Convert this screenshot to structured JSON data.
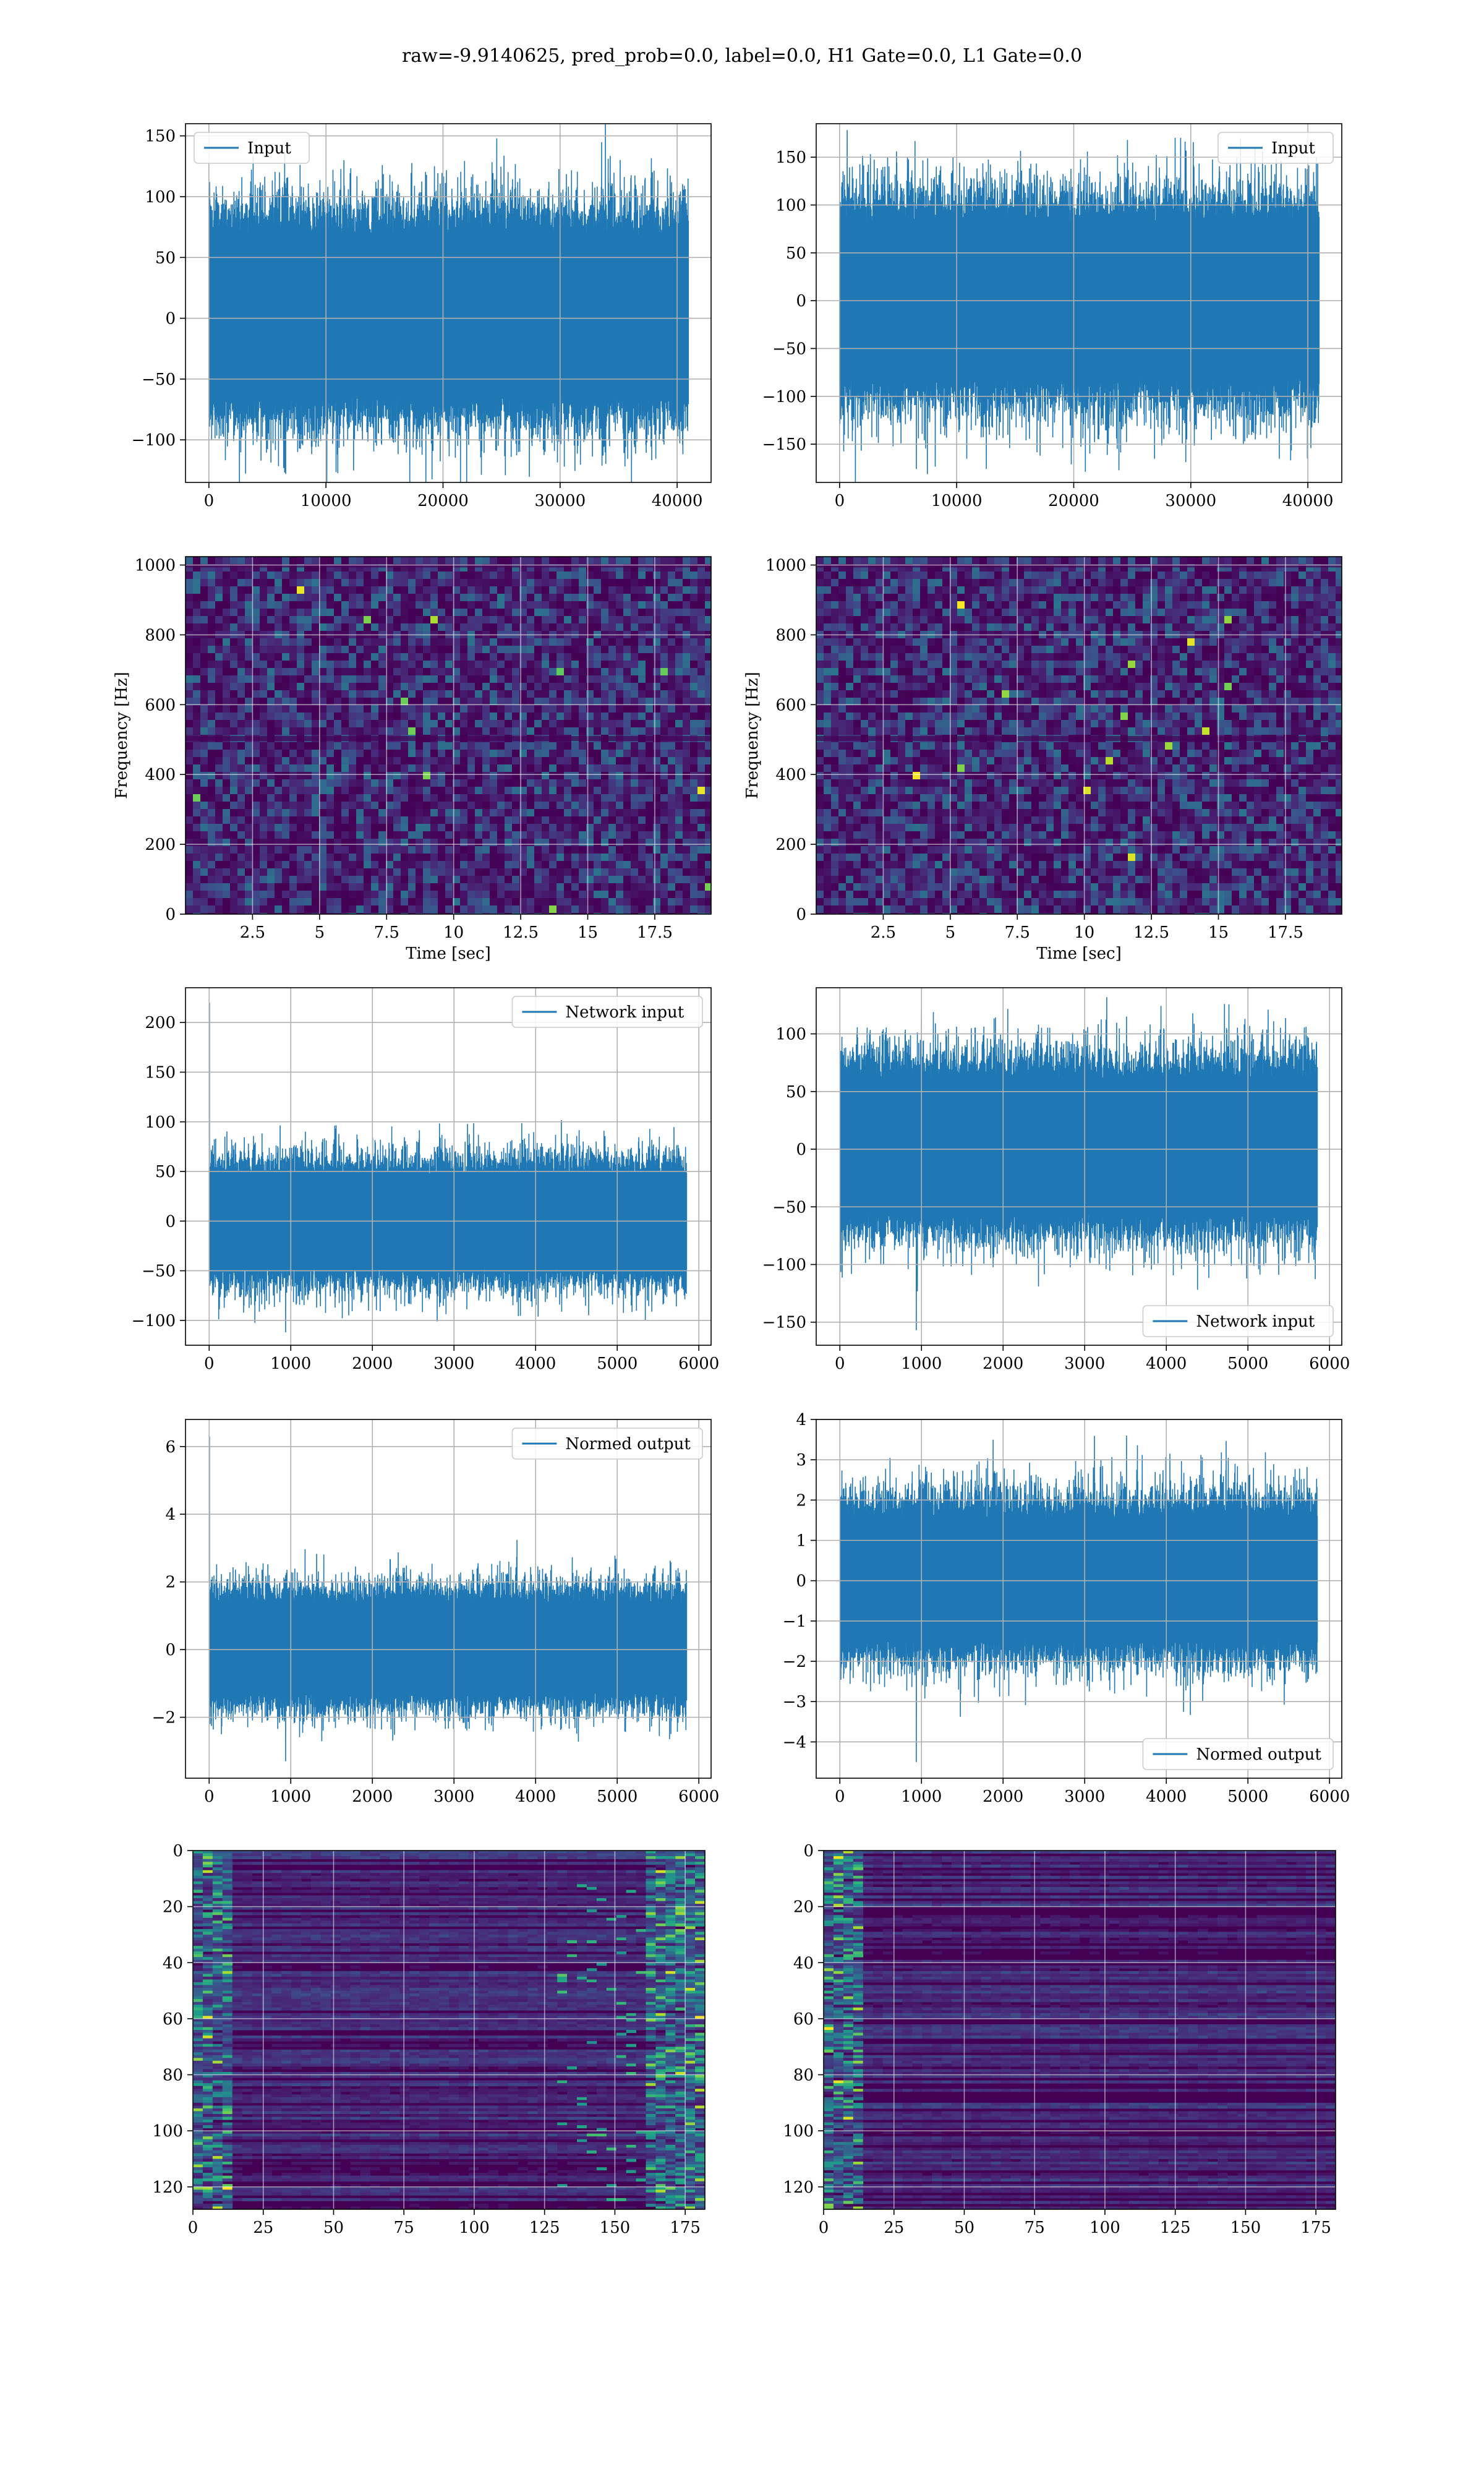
{
  "title": "raw=-9.9140625, pred_prob=0.0, label=0.0, H1 Gate=0.0, L1 Gate=0.0",
  "colors": {
    "line": "#1f77b4",
    "grid": "#b0b0b0",
    "viridis_dark": "#440154",
    "viridis_mid": "#21918c",
    "viridis_bright": "#fde725"
  },
  "chart_data": [
    {
      "id": "h1-input",
      "type": "line",
      "legend": "Input",
      "legend_loc": "upper left",
      "xlim": [
        -2000,
        42900
      ],
      "ylim": [
        -135,
        160
      ],
      "xticks": [
        0,
        10000,
        20000,
        30000,
        40000
      ],
      "yticks": [
        -100,
        -50,
        0,
        50,
        100,
        150
      ],
      "n_samples": 40960,
      "envelope": [
        -75,
        80
      ],
      "peak_max": 148,
      "peak_min": -128,
      "grid": true
    },
    {
      "id": "l1-input",
      "type": "line",
      "legend": "Input",
      "legend_loc": "upper right",
      "xlim": [
        -2000,
        42900
      ],
      "ylim": [
        -190,
        185
      ],
      "xticks": [
        0,
        10000,
        20000,
        30000,
        40000
      ],
      "yticks": [
        -150,
        -100,
        -50,
        0,
        50,
        100,
        150
      ],
      "n_samples": 40960,
      "envelope": [
        -95,
        95
      ],
      "peak_max": 168,
      "peak_min": -176,
      "grid": true
    },
    {
      "id": "h1-spectrogram",
      "type": "heatmap",
      "xlabel": "Time [sec]",
      "ylabel": "Frequency [Hz]",
      "xlim": [
        0,
        19.6
      ],
      "ylim": [
        0,
        1024
      ],
      "xticks": [
        2.5,
        5.0,
        7.5,
        10.0,
        12.5,
        15.0,
        17.5
      ],
      "yticks": [
        0,
        200,
        400,
        600,
        800,
        1000
      ],
      "colormap": "viridis",
      "grid": true
    },
    {
      "id": "l1-spectrogram",
      "type": "heatmap",
      "xlabel": "Time [sec]",
      "ylabel": "Frequency [Hz]",
      "xlim": [
        0,
        19.6
      ],
      "ylim": [
        0,
        1024
      ],
      "xticks": [
        2.5,
        5.0,
        7.5,
        10.0,
        12.5,
        15.0,
        17.5
      ],
      "yticks": [
        0,
        200,
        400,
        600,
        800,
        1000
      ],
      "colormap": "viridis",
      "grid": true
    },
    {
      "id": "h1-network-input",
      "type": "line",
      "legend": "Network input",
      "legend_loc": "upper right",
      "xlim": [
        -290,
        6150
      ],
      "ylim": [
        -125,
        235
      ],
      "xticks": [
        0,
        1000,
        2000,
        3000,
        4000,
        5000,
        6000
      ],
      "yticks": [
        -100,
        -50,
        0,
        50,
        100,
        150,
        200
      ],
      "n_samples": 5850,
      "envelope": [
        -55,
        55
      ],
      "peak_max": 220,
      "peak_min": -112,
      "grid": true
    },
    {
      "id": "l1-network-input",
      "type": "line",
      "legend": "Network input",
      "legend_loc": "lower right",
      "xlim": [
        -290,
        6150
      ],
      "ylim": [
        -170,
        140
      ],
      "xticks": [
        0,
        1000,
        2000,
        3000,
        4000,
        5000,
        6000
      ],
      "yticks": [
        -150,
        -100,
        -50,
        0,
        50,
        100
      ],
      "n_samples": 5850,
      "envelope": [
        -65,
        70
      ],
      "peak_max": 115,
      "peak_min": -157,
      "grid": true
    },
    {
      "id": "h1-normed-output",
      "type": "line",
      "legend": "Normed output",
      "legend_loc": "upper right",
      "xlim": [
        -290,
        6150
      ],
      "ylim": [
        -3.8,
        6.8
      ],
      "xticks": [
        0,
        1000,
        2000,
        3000,
        4000,
        5000,
        6000
      ],
      "yticks": [
        -2,
        0,
        2,
        4,
        6
      ],
      "n_samples": 5850,
      "envelope": [
        -1.5,
        1.6
      ],
      "peak_max": 6.3,
      "peak_min": -3.3,
      "grid": true
    },
    {
      "id": "l1-normed-output",
      "type": "line",
      "legend": "Normed output",
      "legend_loc": "lower right",
      "xlim": [
        -290,
        6150
      ],
      "ylim": [
        -4.9,
        4.0
      ],
      "xticks": [
        0,
        1000,
        2000,
        3000,
        4000,
        5000,
        6000
      ],
      "yticks": [
        -4,
        -3,
        -2,
        -1,
        0,
        1,
        2,
        3,
        4
      ],
      "n_samples": 5850,
      "envelope": [
        -1.7,
        1.8
      ],
      "peak_max": 3.6,
      "peak_min": -4.5,
      "grid": true
    },
    {
      "id": "h1-feature-map",
      "type": "heatmap",
      "xlim": [
        0,
        182
      ],
      "ylim": [
        128,
        0
      ],
      "xticks": [
        0,
        25,
        50,
        75,
        100,
        125,
        150,
        175
      ],
      "yticks": [
        0,
        20,
        40,
        60,
        80,
        100,
        120
      ],
      "rows": 128,
      "cols": 182,
      "colormap": "viridis",
      "grid": true
    },
    {
      "id": "l1-feature-map",
      "type": "heatmap",
      "xlim": [
        0,
        182
      ],
      "ylim": [
        128,
        0
      ],
      "xticks": [
        0,
        25,
        50,
        75,
        100,
        125,
        150,
        175
      ],
      "yticks": [
        0,
        20,
        40,
        60,
        80,
        100,
        120
      ],
      "rows": 128,
      "cols": 182,
      "colormap": "viridis",
      "grid": true
    }
  ]
}
